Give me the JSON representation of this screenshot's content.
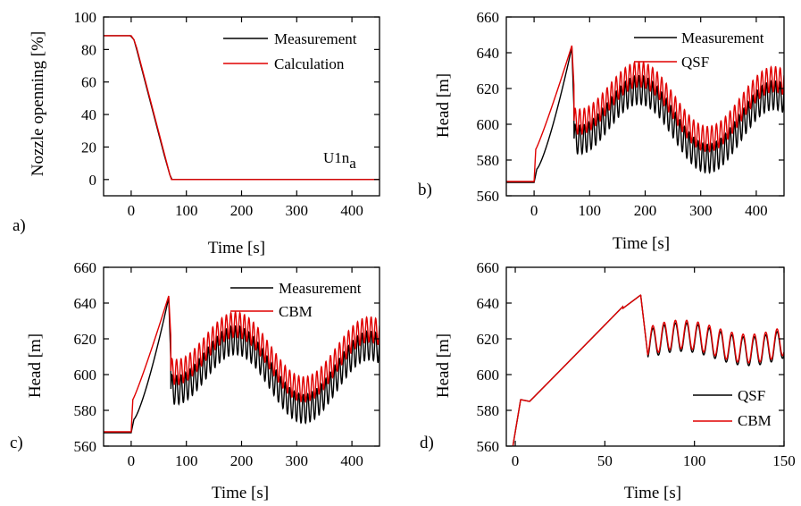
{
  "chart_data": [
    {
      "type": "line",
      "panel_tag": "a)",
      "xlabel": "Time [s]",
      "ylabel": "Nozzle openning [%]",
      "xlim": [
        -50,
        450
      ],
      "ylim": [
        -10,
        100
      ],
      "xticks": [
        0,
        100,
        200,
        300,
        400
      ],
      "yticks": [
        0,
        20,
        40,
        60,
        80,
        100
      ],
      "legend_position": "top-right",
      "annotation": {
        "text": "U1n",
        "subscript": "a"
      },
      "series": [
        {
          "name": "Measurement",
          "color": "#000000",
          "x": [
            -50,
            -2,
            0,
            5,
            10,
            20,
            30,
            40,
            50,
            60,
            70,
            74,
            100,
            200,
            300,
            400,
            450
          ],
          "y": [
            88.5,
            88.5,
            88,
            86,
            80,
            67,
            54,
            41,
            28,
            15,
            3,
            0,
            0,
            0,
            0,
            0,
            0
          ]
        },
        {
          "name": "Calculation",
          "color": "#e00000",
          "x": [
            -50,
            -2,
            0,
            5,
            10,
            20,
            30,
            40,
            50,
            60,
            70,
            73,
            100,
            200,
            300,
            400,
            450
          ],
          "y": [
            88.5,
            88.5,
            88.5,
            86,
            81,
            68,
            55,
            42,
            29,
            16,
            3,
            0,
            0,
            0,
            0,
            0,
            0
          ]
        }
      ]
    },
    {
      "type": "line",
      "panel_tag": "b)",
      "xlabel": "Time [s]",
      "ylabel": "Head [m]",
      "xlim": [
        -50,
        450
      ],
      "ylim": [
        560,
        660
      ],
      "xticks": [
        0,
        100,
        200,
        300,
        400
      ],
      "yticks": [
        560,
        580,
        600,
        620,
        640,
        660
      ],
      "legend_position": "top-right",
      "series": [
        {
          "name": "Measurement",
          "color": "#000000",
          "model": "measurement"
        },
        {
          "name": "QSF",
          "color": "#e00000",
          "model": "qsf"
        }
      ]
    },
    {
      "type": "line",
      "panel_tag": "c)",
      "xlabel": "Time [s]",
      "ylabel": "Head [m]",
      "xlim": [
        -50,
        450
      ],
      "ylim": [
        560,
        660
      ],
      "xticks": [
        0,
        100,
        200,
        300,
        400
      ],
      "yticks": [
        560,
        580,
        600,
        620,
        640,
        660
      ],
      "legend_position": "top-right",
      "series": [
        {
          "name": "Measurement",
          "color": "#000000",
          "model": "measurement"
        },
        {
          "name": "CBM",
          "color": "#e00000",
          "model": "qsf"
        }
      ]
    },
    {
      "type": "line",
      "panel_tag": "d)",
      "xlabel": "Time [s]",
      "ylabel": "Head [m]",
      "xlim": [
        -5,
        150
      ],
      "ylim": [
        560,
        660
      ],
      "xticks": [
        0,
        50,
        100,
        150
      ],
      "yticks": [
        560,
        580,
        600,
        620,
        640,
        660
      ],
      "legend_position": "bottom-right",
      "series": [
        {
          "name": "QSF",
          "color": "#000000",
          "model": "zoom_qsf"
        },
        {
          "name": "CBM",
          "color": "#e00000",
          "model": "zoom_cbm"
        }
      ]
    }
  ]
}
